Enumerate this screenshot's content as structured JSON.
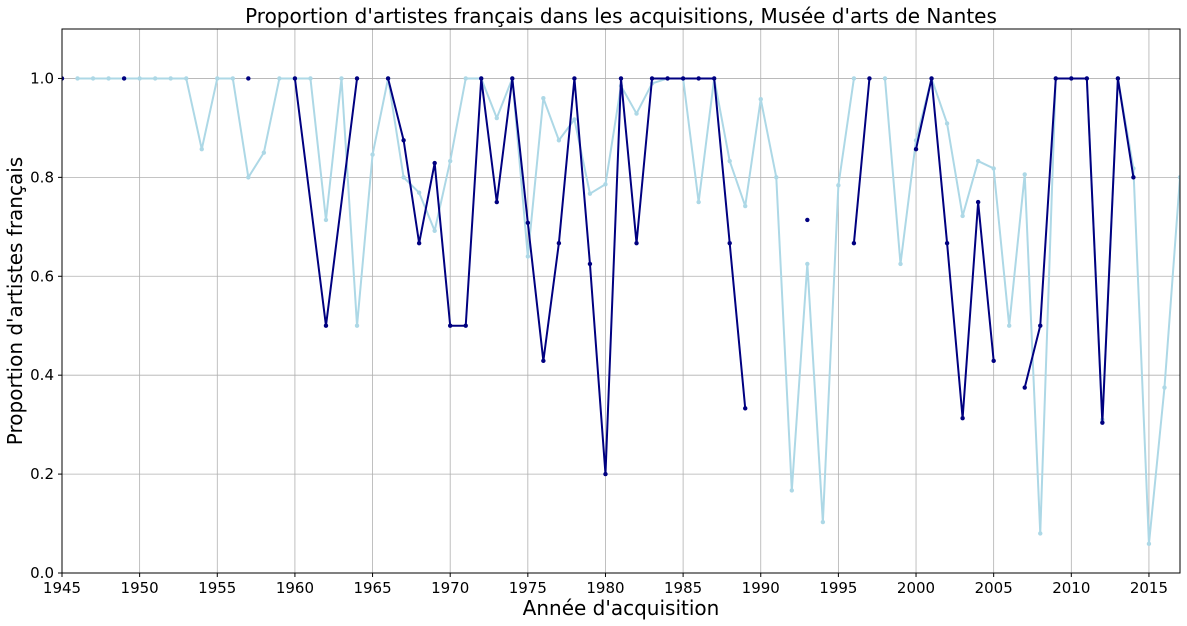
{
  "chart_data": {
    "type": "line",
    "title": "Proportion d'artistes français dans les acquisitions, Musée d'arts de Nantes",
    "xlabel": "Année d'acquisition",
    "ylabel": "Proportion d'artistes français",
    "xlim": [
      1945,
      2017
    ],
    "ylim": [
      0,
      1.1
    ],
    "xticks": [
      1945,
      1950,
      1955,
      1960,
      1965,
      1970,
      1975,
      1980,
      1985,
      1990,
      1995,
      2000,
      2005,
      2010,
      2015
    ],
    "yticks": [
      "0.0",
      "0.2",
      "0.4",
      "0.6",
      "0.8",
      "1.0"
    ],
    "grid": true,
    "series": [
      {
        "color": "#add8e6",
        "points": [
          [
            1946,
            1.0
          ],
          [
            1947,
            1.0
          ],
          [
            1948,
            1.0
          ],
          [
            1949,
            1.0
          ],
          [
            1950,
            1.0
          ],
          [
            1951,
            1.0
          ],
          [
            1952,
            1.0
          ],
          [
            1953,
            1.0
          ],
          [
            1954,
            0.857
          ],
          [
            1955,
            1.0
          ],
          [
            1956,
            1.0
          ],
          [
            1957,
            0.8
          ],
          [
            1958,
            0.85
          ],
          [
            1959,
            1.0
          ],
          [
            1960,
            1.0
          ],
          [
            1961,
            1.0
          ],
          [
            1962,
            0.714
          ],
          [
            1963,
            1.0
          ],
          [
            1964,
            0.5
          ],
          [
            1965,
            0.846
          ],
          [
            1966,
            1.0
          ],
          [
            1967,
            0.8
          ],
          [
            1968,
            0.769
          ],
          [
            1969,
            0.692
          ],
          [
            1970,
            0.833
          ],
          [
            1971,
            1.0
          ],
          [
            1972,
            1.0
          ],
          [
            1973,
            0.92
          ],
          [
            1974,
            1.0
          ],
          [
            1975,
            0.64
          ],
          [
            1976,
            0.96
          ],
          [
            1977,
            0.875
          ],
          [
            1978,
            0.917
          ],
          [
            1979,
            0.767
          ],
          [
            1980,
            0.786
          ],
          [
            1981,
            0.985
          ],
          [
            1982,
            0.929
          ],
          [
            1983,
            0.99
          ],
          [
            1984,
            1.0
          ],
          [
            1985,
            1.0
          ],
          [
            1986,
            0.75
          ],
          [
            1987,
            1.0
          ],
          [
            1988,
            0.833
          ],
          [
            1989,
            0.742
          ],
          [
            1990,
            0.958
          ],
          [
            1991,
            0.8
          ],
          [
            1992,
            0.167
          ],
          [
            1993,
            0.625
          ],
          [
            1994,
            0.103
          ],
          [
            1995,
            0.784
          ],
          [
            1996,
            1.0
          ],
          [
            1997,
            null
          ],
          [
            1998,
            1.0
          ],
          [
            1999,
            0.625
          ],
          [
            2000,
            0.875
          ],
          [
            2001,
            1.0
          ],
          [
            2002,
            0.909
          ],
          [
            2003,
            0.722
          ],
          [
            2004,
            0.833
          ],
          [
            2005,
            0.818
          ],
          [
            2006,
            0.5
          ],
          [
            2007,
            0.806
          ],
          [
            2008,
            0.08
          ],
          [
            2009,
            1.0
          ],
          [
            2010,
            1.0
          ],
          [
            2011,
            1.0
          ],
          [
            2012,
            0.31
          ],
          [
            2013,
            1.0
          ],
          [
            2014,
            0.818
          ],
          [
            2015,
            0.059
          ],
          [
            2016,
            0.375
          ],
          [
            2017,
            0.8
          ]
        ]
      },
      {
        "color": "#000080",
        "points": [
          [
            1945,
            1.0
          ],
          [
            1946,
            null
          ],
          [
            1949,
            1.0
          ],
          [
            1950,
            null
          ],
          [
            1957,
            1.0
          ],
          [
            1958,
            null
          ],
          [
            1960,
            1.0
          ],
          [
            1962,
            0.5
          ],
          [
            1964,
            1.0
          ],
          [
            1965,
            null
          ],
          [
            1966,
            1.0
          ],
          [
            1967,
            0.875
          ],
          [
            1968,
            0.667
          ],
          [
            1969,
            0.829
          ],
          [
            1970,
            0.5
          ],
          [
            1971,
            0.5
          ],
          [
            1972,
            1.0
          ],
          [
            1973,
            0.75
          ],
          [
            1974,
            1.0
          ],
          [
            1975,
            0.708
          ],
          [
            1976,
            0.429
          ],
          [
            1977,
            0.667
          ],
          [
            1978,
            1.0
          ],
          [
            1979,
            0.625
          ],
          [
            1980,
            0.2
          ],
          [
            1981,
            1.0
          ],
          [
            1982,
            0.667
          ],
          [
            1983,
            1.0
          ],
          [
            1984,
            1.0
          ],
          [
            1985,
            1.0
          ],
          [
            1986,
            1.0
          ],
          [
            1987,
            1.0
          ],
          [
            1988,
            0.667
          ],
          [
            1989,
            0.333
          ],
          [
            1990,
            null
          ],
          [
            1993,
            0.714
          ],
          [
            1994,
            null
          ],
          [
            1996,
            0.667
          ],
          [
            1997,
            1.0
          ],
          [
            1998,
            null
          ],
          [
            2000,
            0.857
          ],
          [
            2001,
            1.0
          ],
          [
            2002,
            0.667
          ],
          [
            2003,
            0.313
          ],
          [
            2004,
            0.75
          ],
          [
            2005,
            0.429
          ],
          [
            2006,
            null
          ],
          [
            2007,
            0.375
          ],
          [
            2008,
            0.5
          ],
          [
            2009,
            1.0
          ],
          [
            2010,
            1.0
          ],
          [
            2011,
            1.0
          ],
          [
            2012,
            0.304
          ],
          [
            2013,
            1.0
          ],
          [
            2014,
            0.8
          ]
        ]
      }
    ]
  }
}
